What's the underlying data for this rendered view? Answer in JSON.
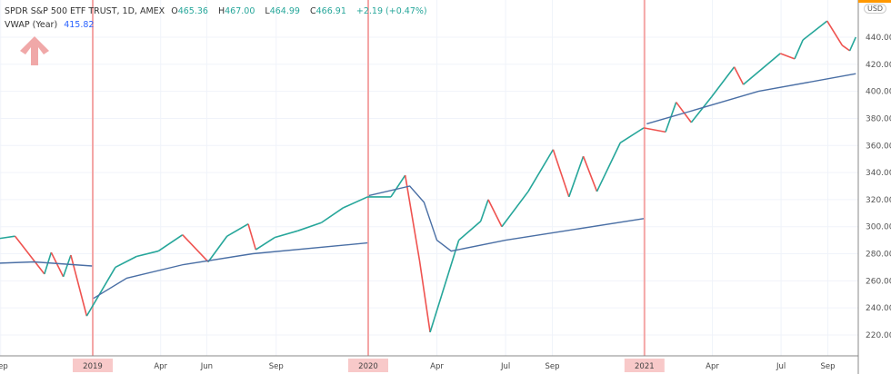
{
  "legend": {
    "symbol": "SPDR S&P 500 ETF TRUST, 1D, AMEX",
    "o_label": "O",
    "o": "465.36",
    "h_label": "H",
    "h": "467.00",
    "l_label": "L",
    "l": "464.99",
    "c_label": "C",
    "c": "466.91",
    "change": "+2.19 (+0.47%)",
    "vwap_label": "VWAP (Year)",
    "vwap": "415.82"
  },
  "currency": "USD",
  "colors": {
    "up": "#26a69a",
    "down": "#ef5350",
    "vwap": "#4a6fa5",
    "year_marker": "#f4a6a6",
    "arrow": "#f0a8a8"
  },
  "chart_data": {
    "type": "line",
    "ylim": [
      210,
      455
    ],
    "y_ticks": [
      220,
      240,
      260,
      280,
      300,
      320,
      340,
      360,
      380,
      400,
      420,
      440
    ],
    "x_tick_labels": [
      {
        "label": "Sep",
        "date": "2018-09-01"
      },
      {
        "label": "2019",
        "date": "2019-01-01",
        "year_marker": true
      },
      {
        "label": "Apr",
        "date": "2019-04-01"
      },
      {
        "label": "Jun",
        "date": "2019-06-01"
      },
      {
        "label": "Sep",
        "date": "2019-09-01"
      },
      {
        "label": "2020",
        "date": "2020-01-01",
        "year_marker": true
      },
      {
        "label": "Apr",
        "date": "2020-04-01"
      },
      {
        "label": "Jul",
        "date": "2020-07-01"
      },
      {
        "label": "Sep",
        "date": "2020-09-01"
      },
      {
        "label": "2021",
        "date": "2021-01-01",
        "year_marker": true
      },
      {
        "label": "Apr",
        "date": "2021-04-01"
      },
      {
        "label": "Jul",
        "date": "2021-07-01"
      },
      {
        "label": "Sep",
        "date": "2021-09-01"
      }
    ],
    "series": [
      {
        "id": "price",
        "points": [
          [
            "2018-08-27",
            291
          ],
          [
            "2018-09-20",
            293
          ],
          [
            "2018-10-29",
            265
          ],
          [
            "2018-11-07",
            281
          ],
          [
            "2018-11-23",
            263
          ],
          [
            "2018-12-03",
            279
          ],
          [
            "2018-12-24",
            234
          ],
          [
            "2019-01-31",
            270
          ],
          [
            "2019-02-28",
            278
          ],
          [
            "2019-03-29",
            282
          ],
          [
            "2019-04-30",
            294
          ],
          [
            "2019-06-03",
            274
          ],
          [
            "2019-06-28",
            293
          ],
          [
            "2019-07-26",
            302
          ],
          [
            "2019-08-05",
            283
          ],
          [
            "2019-08-30",
            292
          ],
          [
            "2019-09-30",
            297
          ],
          [
            "2019-10-31",
            303
          ],
          [
            "2019-11-29",
            314
          ],
          [
            "2019-12-31",
            322
          ],
          [
            "2020-01-31",
            322
          ],
          [
            "2020-02-19",
            338
          ],
          [
            "2020-03-09",
            275
          ],
          [
            "2020-03-23",
            222
          ],
          [
            "2020-04-30",
            290
          ],
          [
            "2020-05-29",
            304
          ],
          [
            "2020-06-08",
            320
          ],
          [
            "2020-06-26",
            300
          ],
          [
            "2020-07-31",
            326
          ],
          [
            "2020-09-02",
            357
          ],
          [
            "2020-09-23",
            322
          ],
          [
            "2020-10-12",
            352
          ],
          [
            "2020-10-30",
            326
          ],
          [
            "2020-11-30",
            362
          ],
          [
            "2020-12-31",
            373
          ],
          [
            "2021-01-29",
            370
          ],
          [
            "2021-02-12",
            392
          ],
          [
            "2021-03-04",
            377
          ],
          [
            "2021-03-31",
            396
          ],
          [
            "2021-04-30",
            418
          ],
          [
            "2021-05-12",
            405
          ],
          [
            "2021-06-30",
            428
          ],
          [
            "2021-07-19",
            424
          ],
          [
            "2021-07-30",
            438
          ],
          [
            "2021-08-31",
            452
          ],
          [
            "2021-09-20",
            434
          ],
          [
            "2021-09-30",
            430
          ],
          [
            "2021-10-08",
            440
          ]
        ]
      },
      {
        "id": "vwap",
        "name": "VWAP (Year)",
        "points": [
          [
            "2018-08-27",
            273
          ],
          [
            "2018-10-15",
            274
          ],
          [
            "2018-12-31",
            271
          ],
          null,
          [
            "2019-01-02",
            247
          ],
          [
            "2019-02-15",
            262
          ],
          [
            "2019-05-01",
            272
          ],
          [
            "2019-08-01",
            280
          ],
          [
            "2019-12-31",
            288
          ],
          null,
          [
            "2020-01-02",
            323
          ],
          [
            "2020-02-25",
            330
          ],
          [
            "2020-03-15",
            318
          ],
          [
            "2020-04-01",
            290
          ],
          [
            "2020-04-20",
            282
          ],
          [
            "2020-07-01",
            290
          ],
          [
            "2020-12-31",
            306
          ],
          null,
          [
            "2021-01-04",
            376
          ],
          [
            "2021-03-01",
            385
          ],
          [
            "2021-06-01",
            400
          ],
          [
            "2021-10-08",
            413
          ]
        ]
      }
    ]
  }
}
